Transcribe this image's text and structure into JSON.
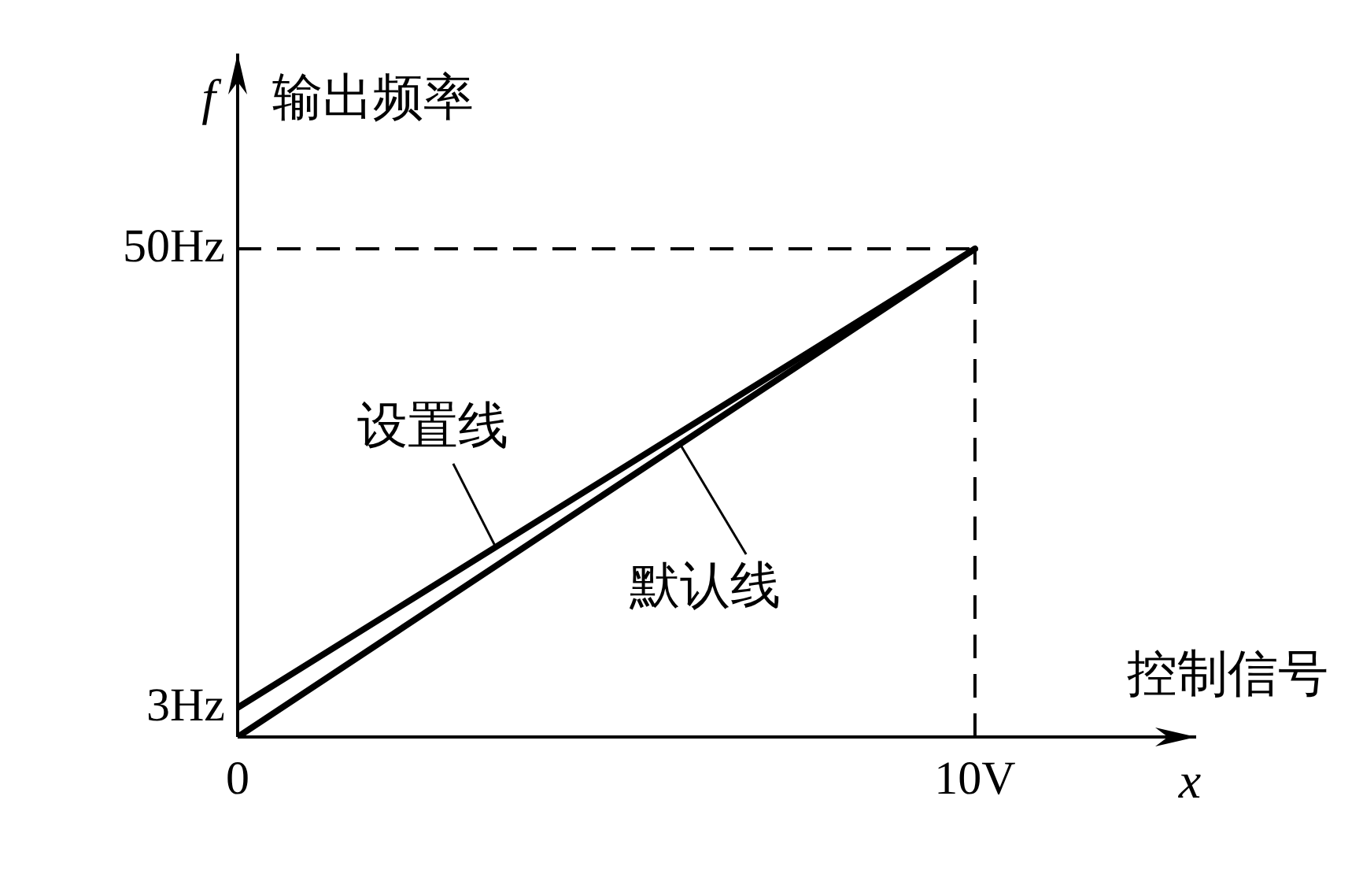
{
  "chart_data": {
    "type": "line",
    "x": [
      0,
      10
    ],
    "series": [
      {
        "name": "设置线",
        "color": "#000000",
        "values": [
          3,
          50
        ]
      },
      {
        "name": "默认线",
        "color": "#000000",
        "values": [
          0,
          50
        ]
      }
    ],
    "xlim": [
      0,
      13
    ],
    "ylim": [
      0,
      70
    ],
    "xticks": [
      0,
      {
        "value": 10,
        "label": "10V"
      }
    ],
    "yticks": [
      {
        "value": 3,
        "label": "3Hz"
      },
      {
        "value": 50,
        "label": "50Hz"
      }
    ],
    "xlabel": "控制信号 x",
    "ylabel": "f 输出频率",
    "ref_lines": [
      {
        "axis": "y",
        "value": 50,
        "color": "#000000",
        "line_style": "dashed"
      },
      {
        "axis": "x",
        "value": 10,
        "color": "#000000",
        "line_style": "dashed"
      }
    ],
    "marker": "none",
    "line_style": "solid"
  }
}
